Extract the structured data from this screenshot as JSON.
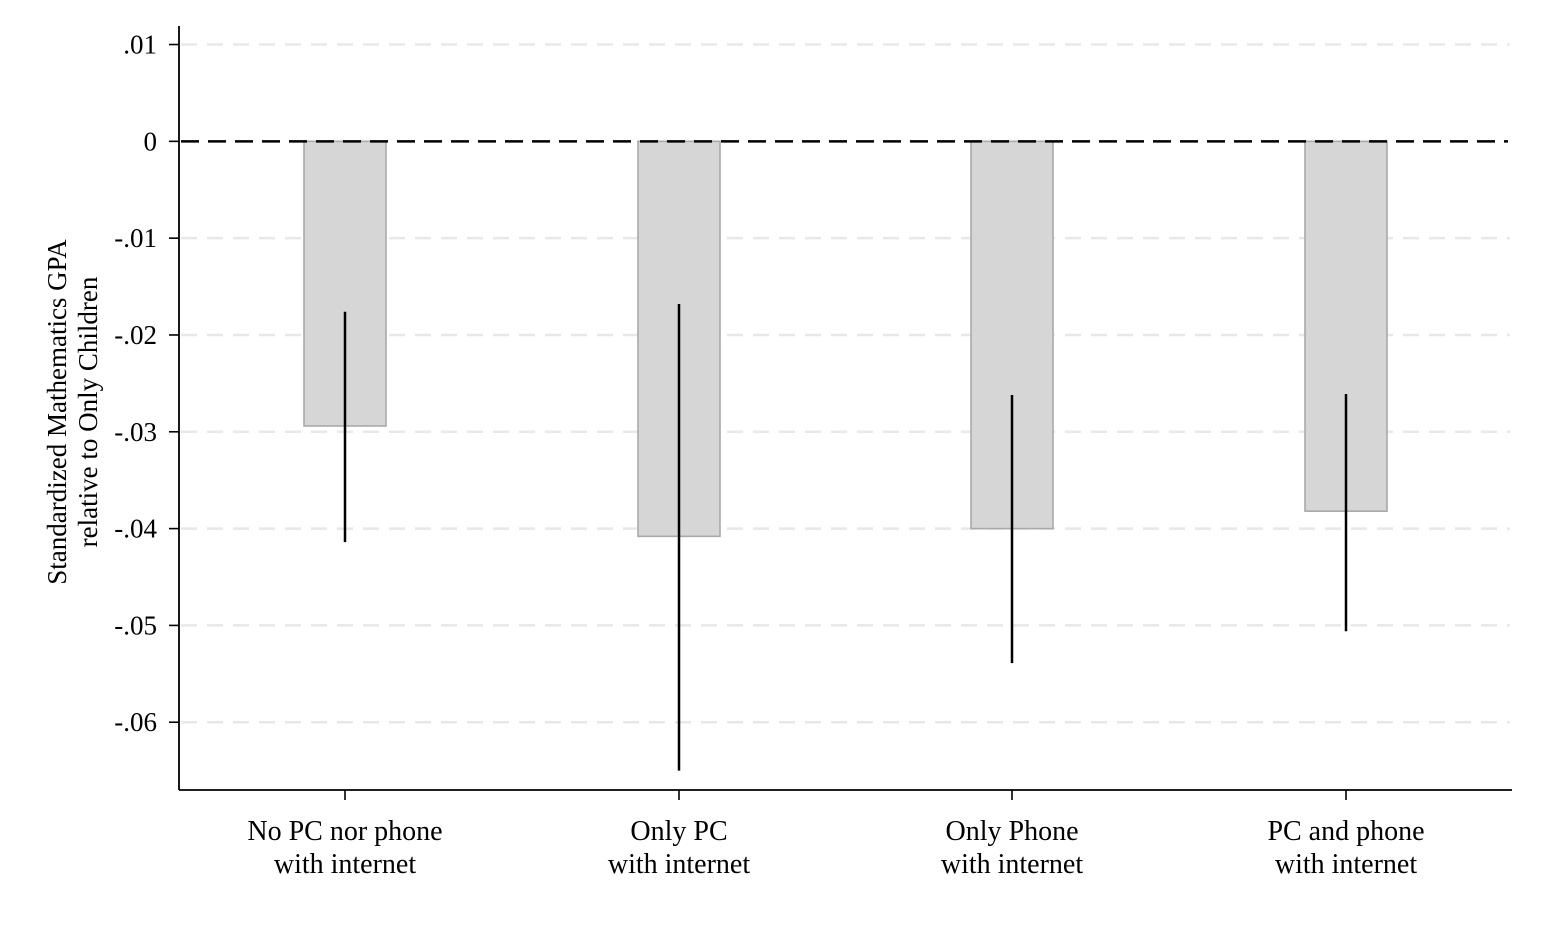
{
  "chart_data": {
    "type": "bar",
    "title": "",
    "xlabel": "",
    "ylabel_lines": [
      "Standardized Mathematics GPA",
      "relative to Only Children"
    ],
    "categories": [
      [
        "No PC nor phone",
        "with internet"
      ],
      [
        "Only PC",
        "with internet"
      ],
      [
        "Only Phone",
        "with internet"
      ],
      [
        "PC and phone",
        "with internet"
      ]
    ],
    "values": [
      -0.0294,
      -0.0408,
      -0.04,
      -0.0382
    ],
    "ci_upper": [
      -0.0176,
      -0.0168,
      -0.0262,
      -0.0261
    ],
    "ci_lower": [
      -0.0414,
      -0.065,
      -0.0539,
      -0.0506
    ],
    "ylim": [
      -0.067,
      0.0115
    ],
    "yticks": [
      0.01,
      0,
      -0.01,
      -0.02,
      -0.03,
      -0.04,
      -0.05,
      -0.06
    ],
    "ytick_labels": [
      ".01",
      "0",
      "-.01",
      "-.02",
      "-.03",
      "-.04",
      "-.05",
      "-.06"
    ],
    "reference_line": 0,
    "grid": true,
    "legend": "none",
    "colors": {
      "bar_fill": "#d6d6d6",
      "bar_stroke": "#a9a9a9",
      "ci": "#000000",
      "grid": "#e8e8e8",
      "reference": "#000000",
      "axis": "#000000"
    }
  }
}
